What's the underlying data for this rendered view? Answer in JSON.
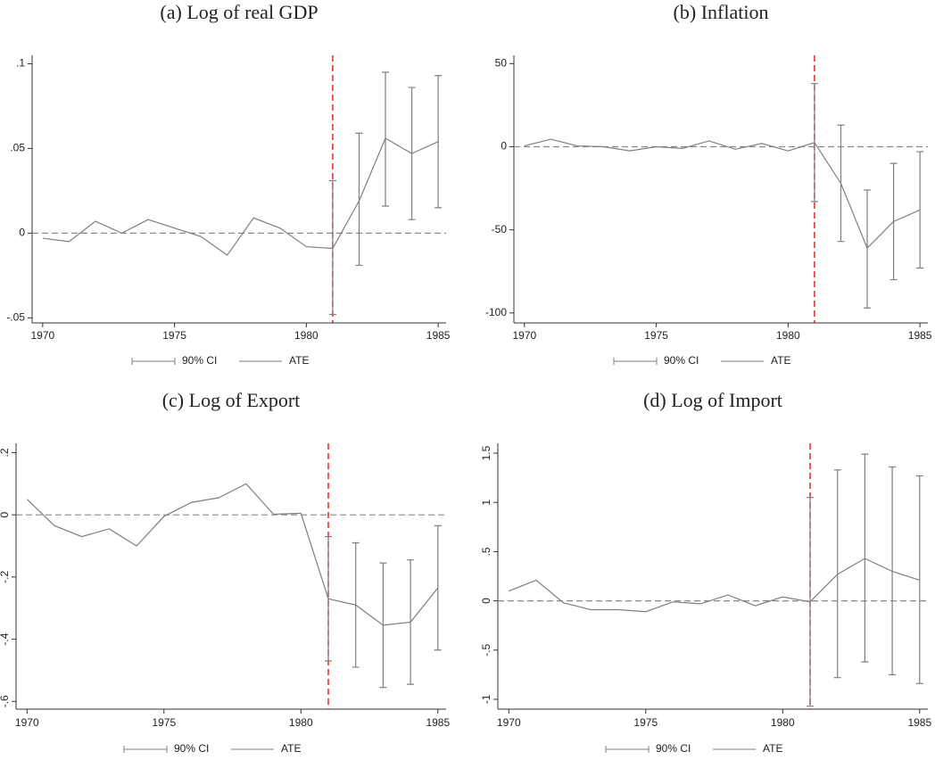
{
  "chart_data": [
    {
      "type": "line",
      "title": "(a) Log of real GDP",
      "x": [
        1970,
        1971,
        1972,
        1973,
        1974,
        1975,
        1976,
        1977,
        1978,
        1979,
        1980,
        1981,
        1982,
        1983,
        1984,
        1985
      ],
      "series": [
        {
          "name": "90% CI",
          "type": "errorbar",
          "color": "#7f7f7f",
          "upper": [
            null,
            null,
            null,
            null,
            null,
            null,
            null,
            null,
            null,
            null,
            null,
            0.031,
            0.059,
            0.095,
            0.086,
            0.093
          ],
          "lower": [
            null,
            null,
            null,
            null,
            null,
            null,
            null,
            null,
            null,
            null,
            null,
            -0.048,
            -0.019,
            0.016,
            0.008,
            0.015
          ]
        },
        {
          "name": "ATE",
          "type": "line",
          "color": "#7f7f7f",
          "values": [
            -0.003,
            -0.005,
            0.007,
            0,
            0.008,
            0.003,
            -0.002,
            -0.013,
            0.009,
            0.003,
            -0.008,
            -0.009,
            0.019,
            0.056,
            0.047,
            0.054
          ]
        }
      ],
      "xlim": [
        1969.6,
        1985.3
      ],
      "xticks": [
        1970,
        1975,
        1980,
        1985
      ],
      "ylim": [
        -0.053,
        0.105
      ],
      "yticks": [
        {
          "value": -0.05,
          "label": "-.05"
        },
        0,
        {
          "value": 0.05,
          "label": ".05"
        },
        {
          "value": 0.1,
          "label": ".1"
        }
      ],
      "hline": 0,
      "vline": 1981,
      "vline_color": "#e8261f"
    },
    {
      "type": "line",
      "title": "(b) Inflation",
      "x": [
        1970,
        1971,
        1972,
        1973,
        1974,
        1975,
        1976,
        1977,
        1978,
        1979,
        1980,
        1981,
        1982,
        1983,
        1984,
        1985
      ],
      "series": [
        {
          "name": "90% CI",
          "type": "errorbar",
          "color": "#7f7f7f",
          "upper": [
            null,
            null,
            null,
            null,
            null,
            null,
            null,
            null,
            null,
            null,
            null,
            38,
            13,
            -26,
            -10,
            -3
          ],
          "lower": [
            null,
            null,
            null,
            null,
            null,
            null,
            null,
            null,
            null,
            null,
            null,
            -33,
            -57,
            -97,
            -80,
            -73
          ]
        },
        {
          "name": "ATE",
          "type": "line",
          "color": "#7f7f7f",
          "values": [
            0.5,
            4.5,
            0.5,
            0,
            -2.5,
            0,
            -1,
            3.5,
            -1.5,
            2,
            -2.5,
            2.5,
            -22,
            -61,
            -45,
            -38
          ]
        }
      ],
      "xlim": [
        1969.6,
        1985.3
      ],
      "xticks": [
        1970,
        1975,
        1980,
        1985
      ],
      "ylim": [
        -106,
        55
      ],
      "yticks": [
        -100,
        -50,
        0,
        50
      ],
      "hline": 0,
      "vline": 1981,
      "vline_color": "#e8261f"
    },
    {
      "type": "line",
      "title": "(c) Log of Export",
      "x": [
        1970,
        1971,
        1972,
        1973,
        1974,
        1975,
        1976,
        1977,
        1978,
        1979,
        1980,
        1981,
        1982,
        1983,
        1984,
        1985
      ],
      "series": [
        {
          "name": "90% CI",
          "type": "errorbar",
          "color": "#7f7f7f",
          "upper": [
            null,
            null,
            null,
            null,
            null,
            null,
            null,
            null,
            null,
            null,
            null,
            -0.07,
            -0.09,
            -0.155,
            -0.145,
            -0.035
          ],
          "lower": [
            null,
            null,
            null,
            null,
            null,
            null,
            null,
            null,
            null,
            null,
            null,
            -0.47,
            -0.49,
            -0.555,
            -0.545,
            -0.435
          ]
        },
        {
          "name": "ATE",
          "type": "line",
          "color": "#7f7f7f",
          "values": [
            0.05,
            -0.035,
            -0.07,
            -0.045,
            -0.1,
            -0.005,
            0.04,
            0.055,
            0.1,
            0.002,
            0.005,
            -0.27,
            -0.29,
            -0.355,
            -0.345,
            -0.235
          ]
        }
      ],
      "xlim": [
        1969.6,
        1985.3
      ],
      "xticks": [
        1970,
        1975,
        1980,
        1985
      ],
      "ylim": [
        -0.625,
        0.23
      ],
      "yticks": [
        {
          "value": -0.6,
          "label": "-.6"
        },
        {
          "value": -0.4,
          "label": "-.4"
        },
        {
          "value": -0.2,
          "label": "-.2"
        },
        0,
        {
          "value": 0.2,
          "label": ".2"
        }
      ],
      "hline": 0,
      "vline": 1981,
      "vline_color": "#e8261f"
    },
    {
      "type": "line",
      "title": "(d) Log of Import",
      "x": [
        1970,
        1971,
        1972,
        1973,
        1974,
        1975,
        1976,
        1977,
        1978,
        1979,
        1980,
        1981,
        1982,
        1983,
        1984,
        1985
      ],
      "series": [
        {
          "name": "90% CI",
          "type": "errorbar",
          "color": "#7f7f7f",
          "upper": [
            null,
            null,
            null,
            null,
            null,
            null,
            null,
            null,
            null,
            null,
            null,
            1.05,
            1.33,
            1.49,
            1.36,
            1.27
          ],
          "lower": [
            null,
            null,
            null,
            null,
            null,
            null,
            null,
            null,
            null,
            null,
            null,
            -1.07,
            -0.78,
            -0.62,
            -0.75,
            -0.84
          ]
        },
        {
          "name": "ATE",
          "type": "line",
          "color": "#7f7f7f",
          "values": [
            0.1,
            0.21,
            -0.02,
            -0.09,
            -0.09,
            -0.11,
            -0.01,
            -0.03,
            0.06,
            -0.05,
            0.04,
            -0.01,
            0.27,
            0.43,
            0.3,
            0.21
          ]
        }
      ],
      "xlim": [
        1969.6,
        1985.3
      ],
      "xticks": [
        1970,
        1975,
        1980,
        1985
      ],
      "ylim": [
        -1.1,
        1.6
      ],
      "yticks": [
        -1,
        {
          "value": -0.5,
          "label": "-.5"
        },
        0,
        {
          "value": 0.5,
          "label": ".5"
        },
        1,
        {
          "value": 1.5,
          "label": "1.5"
        }
      ],
      "hline": 0,
      "vline": 1981,
      "vline_color": "#e8261f"
    }
  ]
}
